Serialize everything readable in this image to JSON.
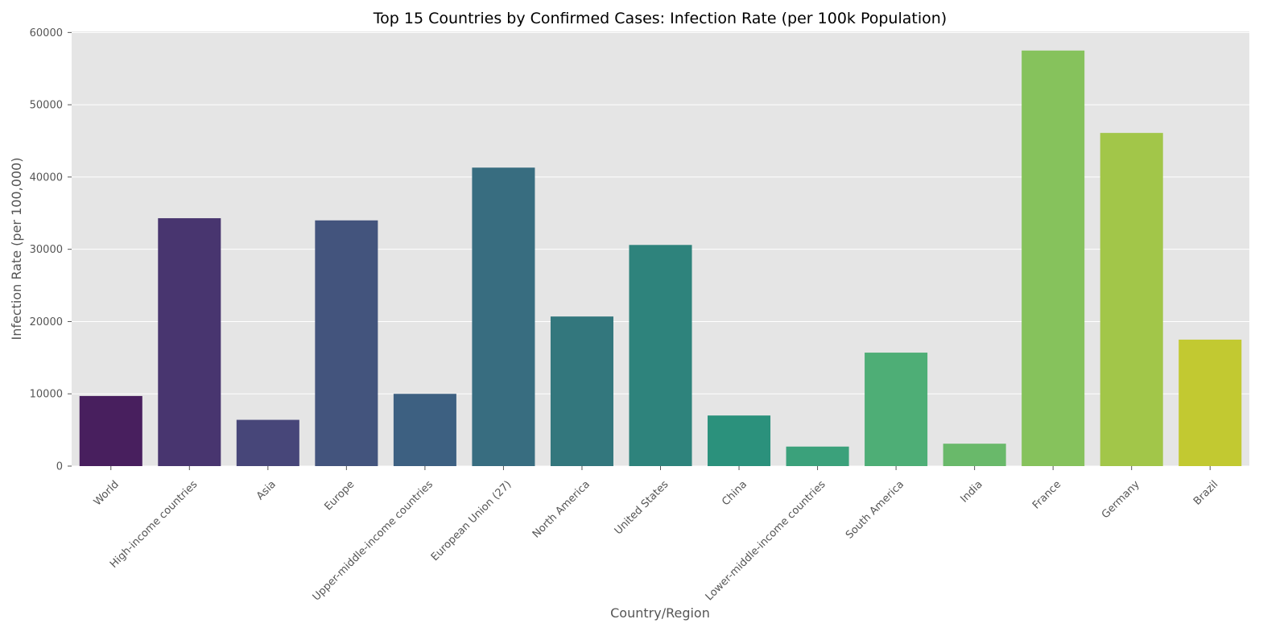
{
  "chart_data": {
    "type": "bar",
    "title": "Top 15 Countries by Confirmed Cases: Infection Rate (per 100k Population)",
    "xlabel": "Country/Region",
    "ylabel": "Infection Rate (per 100,000)",
    "ylim": [
      0,
      60000
    ],
    "yticks": [
      0,
      10000,
      20000,
      30000,
      40000,
      50000,
      60000
    ],
    "ytick_labels": [
      "0",
      "10000",
      "20000",
      "30000",
      "40000",
      "50000",
      "60000"
    ],
    "grid": true,
    "legend": "none",
    "categories": [
      "World",
      "High-income countries",
      "Asia",
      "Europe",
      "Upper-middle-income countries",
      "European Union (27)",
      "North America",
      "United States",
      "China",
      "Lower-middle-income countries",
      "South America",
      "India",
      "France",
      "Germany",
      "Brazil"
    ],
    "values": [
      9700,
      34300,
      6400,
      34000,
      10000,
      41300,
      20700,
      30600,
      7000,
      2700,
      15700,
      3100,
      57500,
      46100,
      17500
    ],
    "colors": [
      "#481f5e",
      "#48356f",
      "#474679",
      "#43547d",
      "#3d6081",
      "#386d80",
      "#33777d",
      "#2e837c",
      "#2b917c",
      "#3ba17b",
      "#4eae76",
      "#69b96a",
      "#86c25c",
      "#a2c649",
      "#c2c931"
    ],
    "plot_background": "#e5e5e5",
    "grid_color": "#ffffff"
  }
}
